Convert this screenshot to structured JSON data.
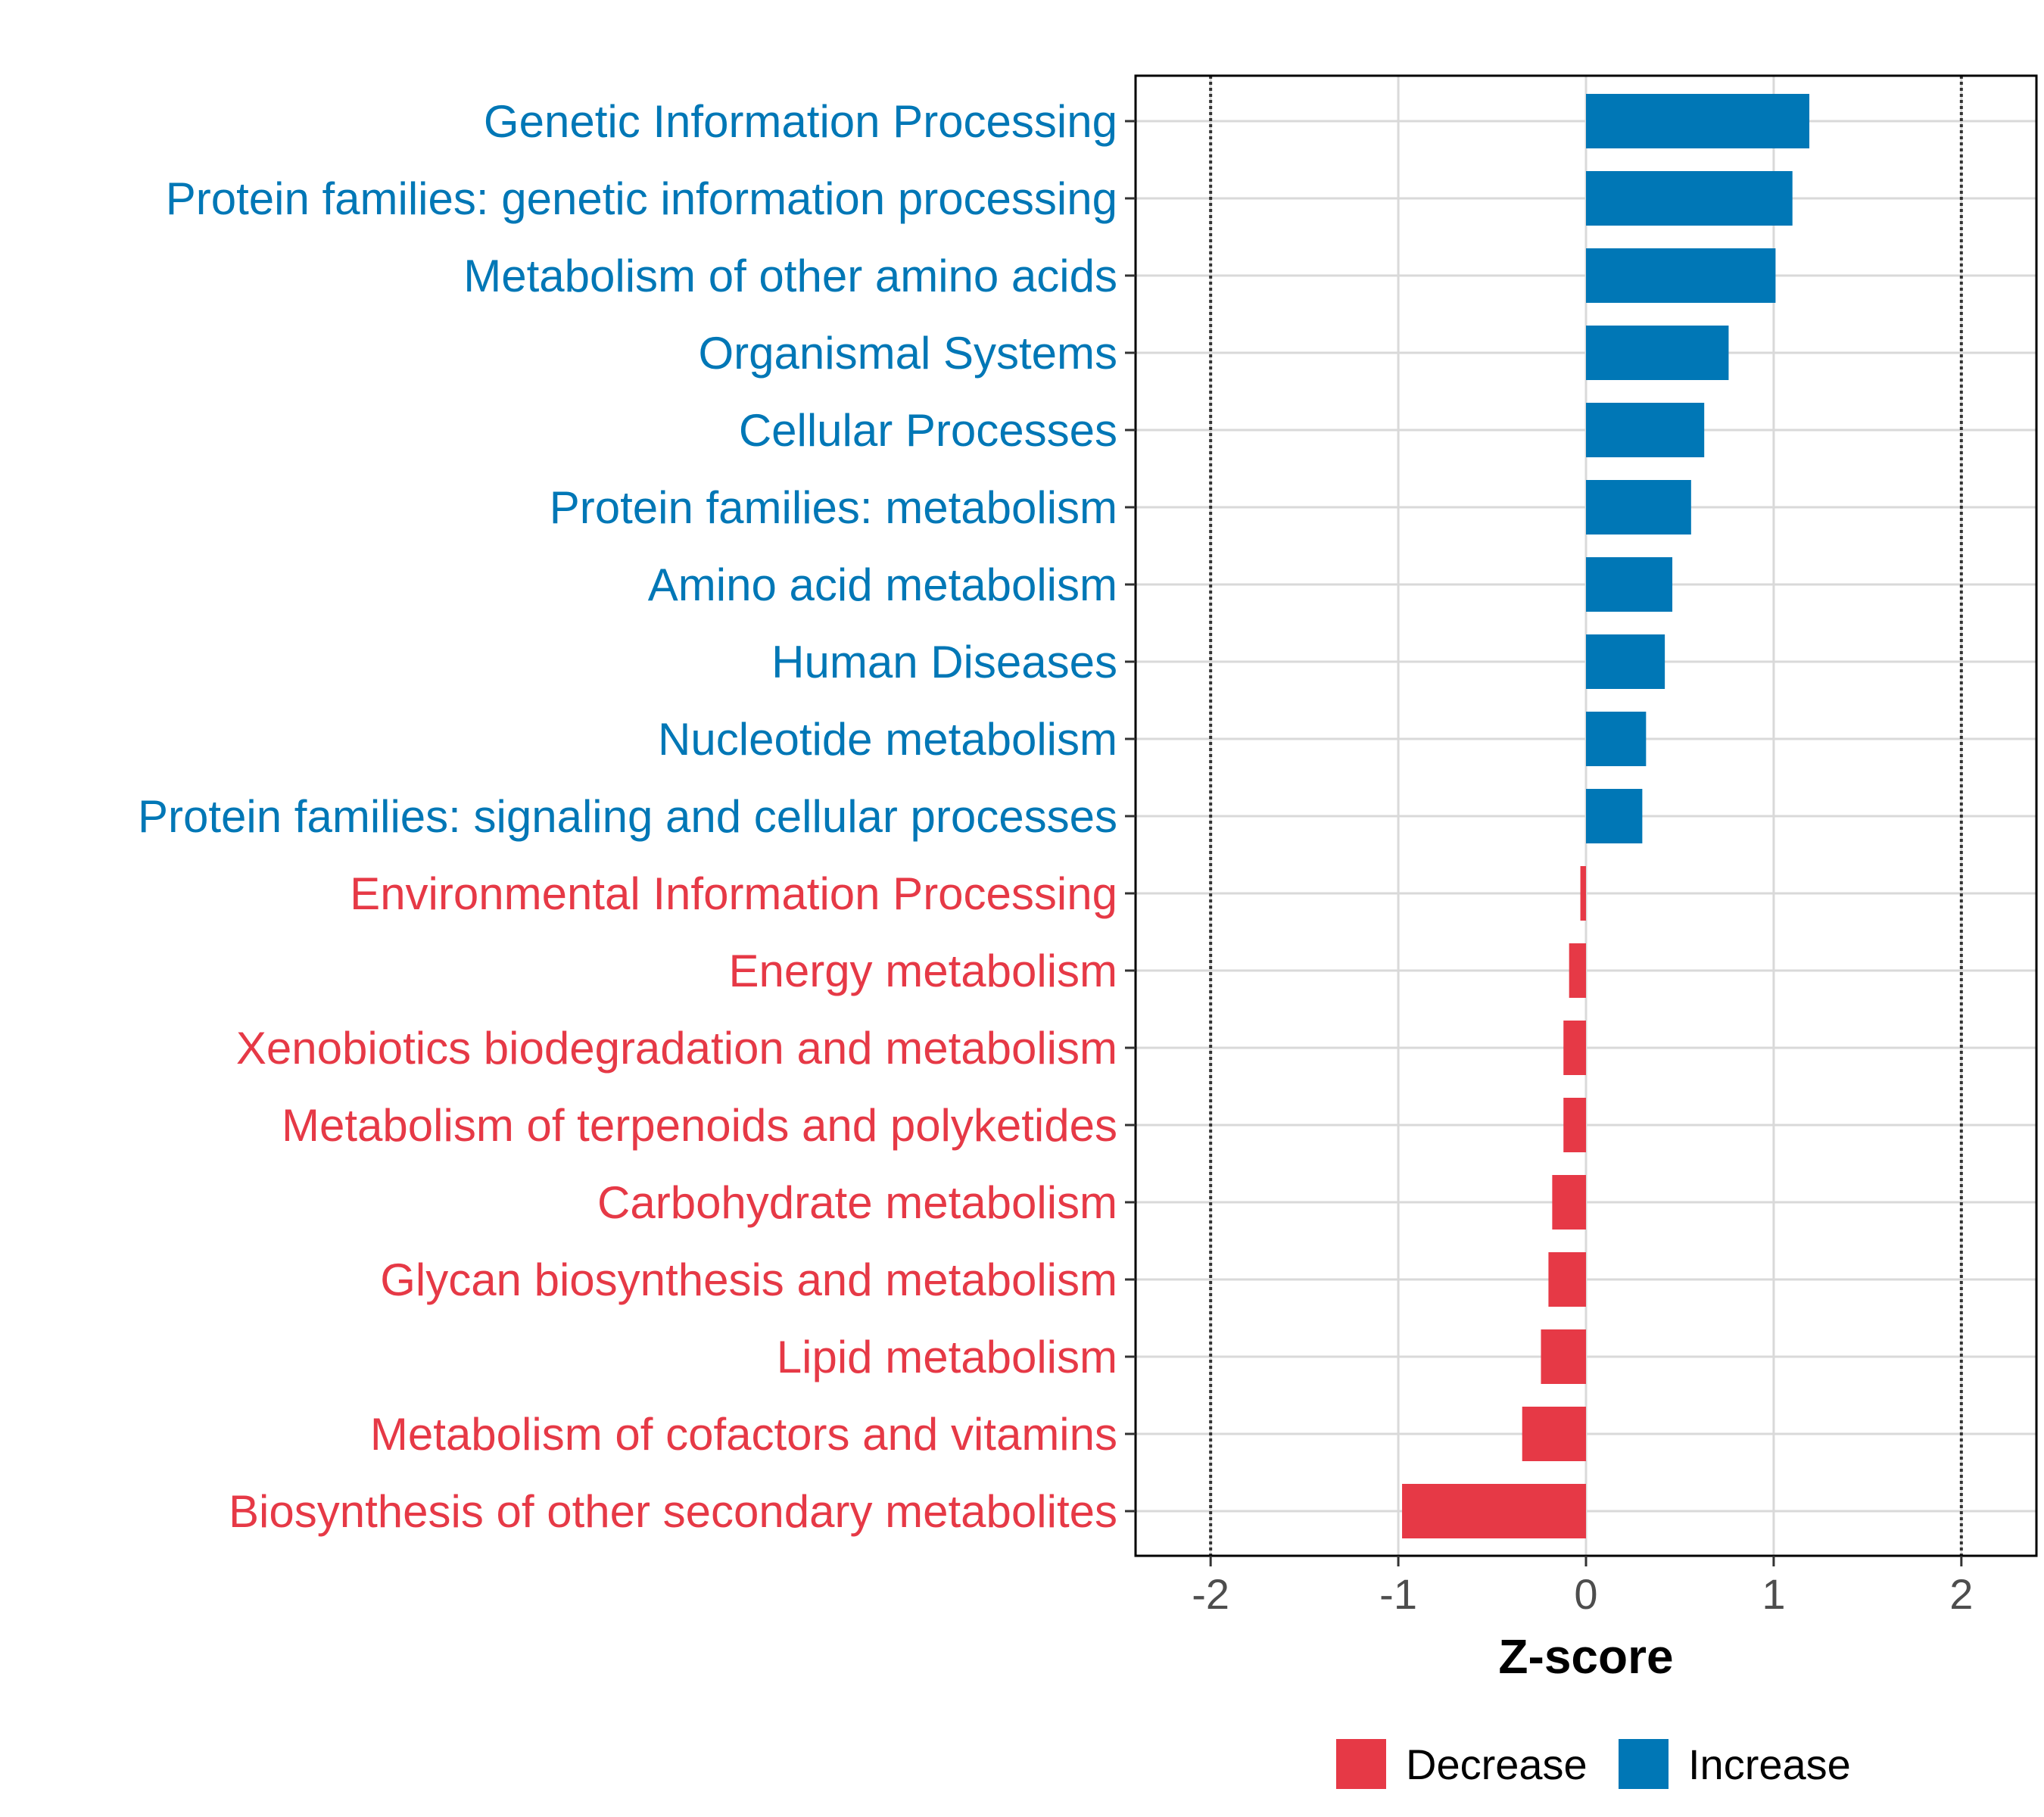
{
  "chart_data": {
    "type": "bar",
    "orientation": "horizontal",
    "title": "",
    "xlabel": "Z-score",
    "ylabel": "",
    "xlim": [
      -2.4,
      2.4
    ],
    "xticks": [
      -2,
      -1,
      0,
      1,
      2
    ],
    "xtick_labels": [
      "-2",
      "-1",
      "0",
      "1",
      "2"
    ],
    "reference_lines": [
      -2,
      2
    ],
    "grid": true,
    "legend_position": "bottom",
    "categories": [
      "Genetic Information Processing",
      "Protein families: genetic information processing",
      "Metabolism of other amino acids",
      "Organismal Systems",
      "Cellular Processes",
      "Protein families: metabolism",
      "Amino acid metabolism",
      "Human Diseases",
      "Nucleotide metabolism",
      "Protein families: signaling and cellular processes",
      "Environmental Information Processing",
      "Energy metabolism",
      "Xenobiotics biodegradation and metabolism",
      "Metabolism of terpenoids and polyketides",
      "Carbohydrate metabolism",
      "Glycan biosynthesis and metabolism",
      "Lipid metabolism",
      "Metabolism of cofactors and vitamins",
      "Biosynthesis of other secondary metabolites"
    ],
    "values": [
      1.19,
      1.1,
      1.01,
      0.76,
      0.63,
      0.56,
      0.46,
      0.42,
      0.32,
      0.3,
      -0.03,
      -0.09,
      -0.12,
      -0.12,
      -0.18,
      -0.2,
      -0.24,
      -0.34,
      -0.98
    ],
    "groups": [
      "Increase",
      "Increase",
      "Increase",
      "Increase",
      "Increase",
      "Increase",
      "Increase",
      "Increase",
      "Increase",
      "Increase",
      "Decrease",
      "Decrease",
      "Decrease",
      "Decrease",
      "Decrease",
      "Decrease",
      "Decrease",
      "Decrease",
      "Decrease"
    ],
    "legend": [
      {
        "name": "Decrease",
        "color": "#e63946"
      },
      {
        "name": "Increase",
        "color": "#0077b6"
      }
    ]
  }
}
